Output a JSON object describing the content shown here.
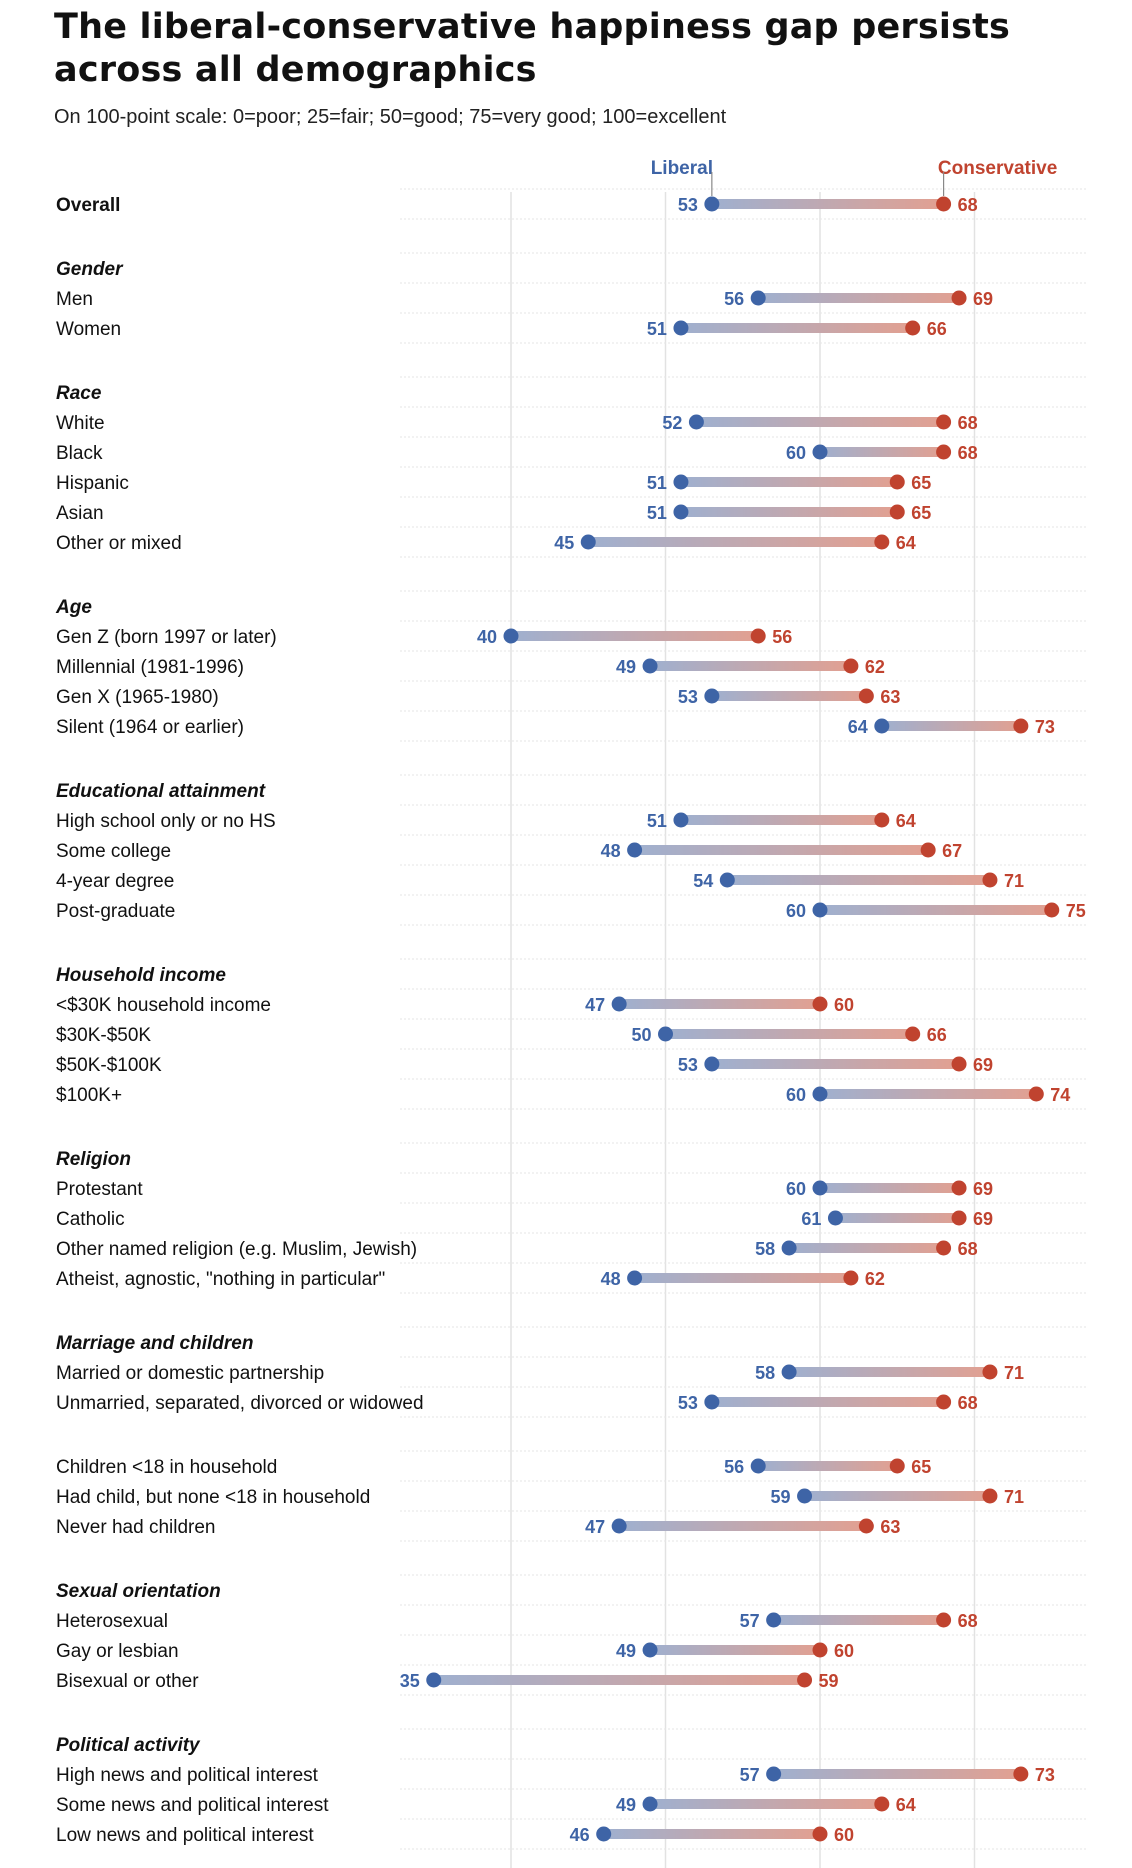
{
  "chart_data": {
    "type": "dumbbell",
    "title": "The liberal-conservative happiness gap persists across all demographics",
    "subtitle": "On 100-point scale: 0=poor; 25=fair; 50=good; 75=very good; 100=excellent",
    "series_names": [
      "Liberal",
      "Conservative"
    ],
    "colors": {
      "liberal": "#3e64a6",
      "conservative": "#c0432f",
      "grid": "#e2e2e2"
    },
    "xlim": [
      35,
      75
    ],
    "gridlines": [
      40,
      50,
      60,
      70
    ],
    "groups": [
      {
        "label": null,
        "rows": [
          {
            "label": "Overall",
            "liberal": 53,
            "conservative": 68,
            "bold": true
          }
        ]
      },
      {
        "label": "Gender",
        "rows": [
          {
            "label": "Men",
            "liberal": 56,
            "conservative": 69
          },
          {
            "label": "Women",
            "liberal": 51,
            "conservative": 66
          }
        ]
      },
      {
        "label": "Race",
        "rows": [
          {
            "label": "White",
            "liberal": 52,
            "conservative": 68
          },
          {
            "label": "Black",
            "liberal": 60,
            "conservative": 68
          },
          {
            "label": "Hispanic",
            "liberal": 51,
            "conservative": 65
          },
          {
            "label": "Asian",
            "liberal": 51,
            "conservative": 65
          },
          {
            "label": "Other or mixed",
            "liberal": 45,
            "conservative": 64
          }
        ]
      },
      {
        "label": "Age",
        "rows": [
          {
            "label": "Gen Z (born 1997 or later)",
            "liberal": 40,
            "conservative": 56
          },
          {
            "label": "Millennial (1981-1996)",
            "liberal": 49,
            "conservative": 62
          },
          {
            "label": "Gen X (1965-1980)",
            "liberal": 53,
            "conservative": 63
          },
          {
            "label": "Silent (1964 or earlier)",
            "liberal": 64,
            "conservative": 73
          }
        ]
      },
      {
        "label": "Educational attainment",
        "rows": [
          {
            "label": "High school only or no HS",
            "liberal": 51,
            "conservative": 64
          },
          {
            "label": "Some college",
            "liberal": 48,
            "conservative": 67
          },
          {
            "label": "4-year degree",
            "liberal": 54,
            "conservative": 71
          },
          {
            "label": "Post-graduate",
            "liberal": 60,
            "conservative": 75
          }
        ]
      },
      {
        "label": "Household income",
        "rows": [
          {
            "label": "<$30K household income",
            "liberal": 47,
            "conservative": 60
          },
          {
            "label": "$30K-$50K",
            "liberal": 50,
            "conservative": 66
          },
          {
            "label": "$50K-$100K",
            "liberal": 53,
            "conservative": 69
          },
          {
            "label": "$100K+",
            "liberal": 60,
            "conservative": 74
          }
        ]
      },
      {
        "label": "Religion",
        "rows": [
          {
            "label": "Protestant",
            "liberal": 60,
            "conservative": 69
          },
          {
            "label": "Catholic",
            "liberal": 61,
            "conservative": 69
          },
          {
            "label": "Other named religion (e.g. Muslim, Jewish)",
            "liberal": 58,
            "conservative": 68
          },
          {
            "label": "Atheist, agnostic, \"nothing in particular\"",
            "liberal": 48,
            "conservative": 62
          }
        ]
      },
      {
        "label": "Marriage and children",
        "rows": [
          {
            "label": "Married or domestic partnership",
            "liberal": 58,
            "conservative": 71
          },
          {
            "label": "Unmarried, separated, divorced or widowed",
            "liberal": 53,
            "conservative": 68
          }
        ]
      },
      {
        "label": null,
        "rows": [
          {
            "label": "Children <18 in household",
            "liberal": 56,
            "conservative": 65
          },
          {
            "label": "Had child, but none <18 in household",
            "liberal": 59,
            "conservative": 71
          },
          {
            "label": "Never had children",
            "liberal": 47,
            "conservative": 63
          }
        ]
      },
      {
        "label": "Sexual orientation",
        "rows": [
          {
            "label": "Heterosexual",
            "liberal": 57,
            "conservative": 68
          },
          {
            "label": "Gay or lesbian",
            "liberal": 49,
            "conservative": 60
          },
          {
            "label": "Bisexual or other",
            "liberal": 35,
            "conservative": 59
          }
        ]
      },
      {
        "label": "Political activity",
        "rows": [
          {
            "label": "High news and political interest",
            "liberal": 57,
            "conservative": 73
          },
          {
            "label": "Some news and political interest",
            "liberal": 49,
            "conservative": 64
          },
          {
            "label": "Low news and political interest",
            "liberal": 46,
            "conservative": 60
          }
        ]
      }
    ]
  }
}
